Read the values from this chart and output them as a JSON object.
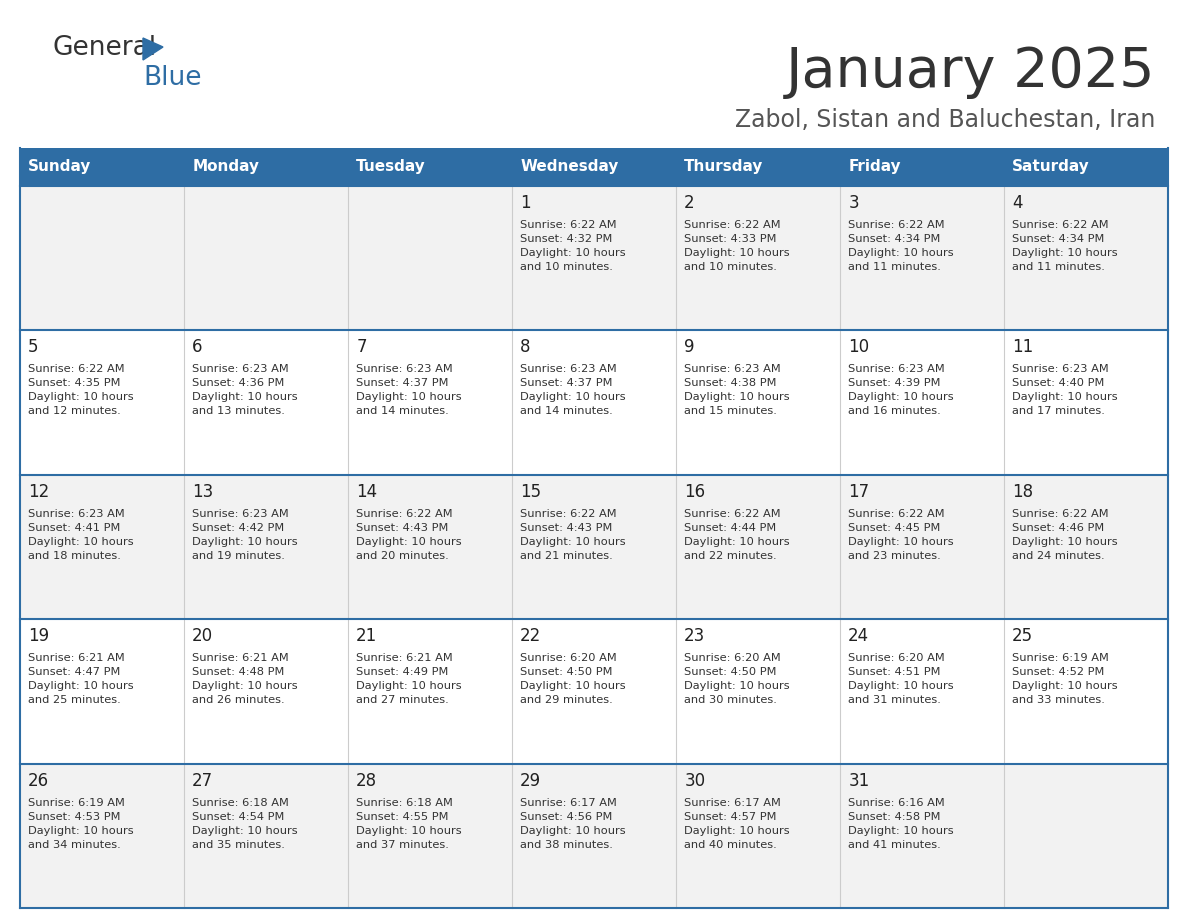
{
  "title": "January 2025",
  "subtitle": "Zabol, Sistan and Baluchestan, Iran",
  "header_color": "#2E6DA4",
  "header_text_color": "#FFFFFF",
  "cell_bg_even": "#F2F2F2",
  "cell_bg_odd": "#FFFFFF",
  "border_color": "#2E6DA4",
  "divider_color": "#CCCCCC",
  "text_color": "#333333",
  "day_num_color": "#222222",
  "subtitle_color": "#555555",
  "logo_text_color": "#333333",
  "logo_blue_color": "#2E6DA4",
  "days_of_week": [
    "Sunday",
    "Monday",
    "Tuesday",
    "Wednesday",
    "Thursday",
    "Friday",
    "Saturday"
  ],
  "calendar_data": [
    [
      {
        "day": "",
        "info": ""
      },
      {
        "day": "",
        "info": ""
      },
      {
        "day": "",
        "info": ""
      },
      {
        "day": "1",
        "info": "Sunrise: 6:22 AM\nSunset: 4:32 PM\nDaylight: 10 hours\nand 10 minutes."
      },
      {
        "day": "2",
        "info": "Sunrise: 6:22 AM\nSunset: 4:33 PM\nDaylight: 10 hours\nand 10 minutes."
      },
      {
        "day": "3",
        "info": "Sunrise: 6:22 AM\nSunset: 4:34 PM\nDaylight: 10 hours\nand 11 minutes."
      },
      {
        "day": "4",
        "info": "Sunrise: 6:22 AM\nSunset: 4:34 PM\nDaylight: 10 hours\nand 11 minutes."
      }
    ],
    [
      {
        "day": "5",
        "info": "Sunrise: 6:22 AM\nSunset: 4:35 PM\nDaylight: 10 hours\nand 12 minutes."
      },
      {
        "day": "6",
        "info": "Sunrise: 6:23 AM\nSunset: 4:36 PM\nDaylight: 10 hours\nand 13 minutes."
      },
      {
        "day": "7",
        "info": "Sunrise: 6:23 AM\nSunset: 4:37 PM\nDaylight: 10 hours\nand 14 minutes."
      },
      {
        "day": "8",
        "info": "Sunrise: 6:23 AM\nSunset: 4:37 PM\nDaylight: 10 hours\nand 14 minutes."
      },
      {
        "day": "9",
        "info": "Sunrise: 6:23 AM\nSunset: 4:38 PM\nDaylight: 10 hours\nand 15 minutes."
      },
      {
        "day": "10",
        "info": "Sunrise: 6:23 AM\nSunset: 4:39 PM\nDaylight: 10 hours\nand 16 minutes."
      },
      {
        "day": "11",
        "info": "Sunrise: 6:23 AM\nSunset: 4:40 PM\nDaylight: 10 hours\nand 17 minutes."
      }
    ],
    [
      {
        "day": "12",
        "info": "Sunrise: 6:23 AM\nSunset: 4:41 PM\nDaylight: 10 hours\nand 18 minutes."
      },
      {
        "day": "13",
        "info": "Sunrise: 6:23 AM\nSunset: 4:42 PM\nDaylight: 10 hours\nand 19 minutes."
      },
      {
        "day": "14",
        "info": "Sunrise: 6:22 AM\nSunset: 4:43 PM\nDaylight: 10 hours\nand 20 minutes."
      },
      {
        "day": "15",
        "info": "Sunrise: 6:22 AM\nSunset: 4:43 PM\nDaylight: 10 hours\nand 21 minutes."
      },
      {
        "day": "16",
        "info": "Sunrise: 6:22 AM\nSunset: 4:44 PM\nDaylight: 10 hours\nand 22 minutes."
      },
      {
        "day": "17",
        "info": "Sunrise: 6:22 AM\nSunset: 4:45 PM\nDaylight: 10 hours\nand 23 minutes."
      },
      {
        "day": "18",
        "info": "Sunrise: 6:22 AM\nSunset: 4:46 PM\nDaylight: 10 hours\nand 24 minutes."
      }
    ],
    [
      {
        "day": "19",
        "info": "Sunrise: 6:21 AM\nSunset: 4:47 PM\nDaylight: 10 hours\nand 25 minutes."
      },
      {
        "day": "20",
        "info": "Sunrise: 6:21 AM\nSunset: 4:48 PM\nDaylight: 10 hours\nand 26 minutes."
      },
      {
        "day": "21",
        "info": "Sunrise: 6:21 AM\nSunset: 4:49 PM\nDaylight: 10 hours\nand 27 minutes."
      },
      {
        "day": "22",
        "info": "Sunrise: 6:20 AM\nSunset: 4:50 PM\nDaylight: 10 hours\nand 29 minutes."
      },
      {
        "day": "23",
        "info": "Sunrise: 6:20 AM\nSunset: 4:50 PM\nDaylight: 10 hours\nand 30 minutes."
      },
      {
        "day": "24",
        "info": "Sunrise: 6:20 AM\nSunset: 4:51 PM\nDaylight: 10 hours\nand 31 minutes."
      },
      {
        "day": "25",
        "info": "Sunrise: 6:19 AM\nSunset: 4:52 PM\nDaylight: 10 hours\nand 33 minutes."
      }
    ],
    [
      {
        "day": "26",
        "info": "Sunrise: 6:19 AM\nSunset: 4:53 PM\nDaylight: 10 hours\nand 34 minutes."
      },
      {
        "day": "27",
        "info": "Sunrise: 6:18 AM\nSunset: 4:54 PM\nDaylight: 10 hours\nand 35 minutes."
      },
      {
        "day": "28",
        "info": "Sunrise: 6:18 AM\nSunset: 4:55 PM\nDaylight: 10 hours\nand 37 minutes."
      },
      {
        "day": "29",
        "info": "Sunrise: 6:17 AM\nSunset: 4:56 PM\nDaylight: 10 hours\nand 38 minutes."
      },
      {
        "day": "30",
        "info": "Sunrise: 6:17 AM\nSunset: 4:57 PM\nDaylight: 10 hours\nand 40 minutes."
      },
      {
        "day": "31",
        "info": "Sunrise: 6:16 AM\nSunset: 4:58 PM\nDaylight: 10 hours\nand 41 minutes."
      },
      {
        "day": "",
        "info": ""
      }
    ]
  ]
}
